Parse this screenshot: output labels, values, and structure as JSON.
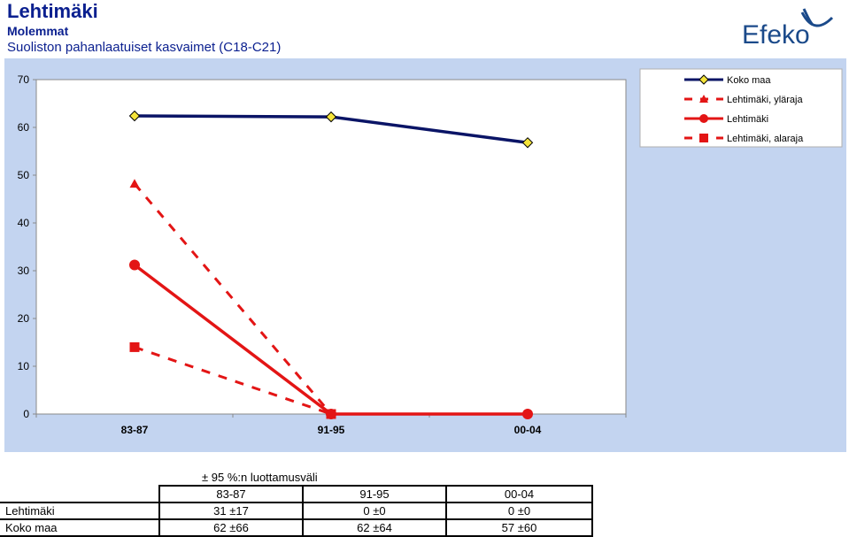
{
  "header": {
    "title": "Lehtimäki",
    "subtitle": "Molemmat",
    "chart_title": "Suoliston pahanlaatuiset kasvaimet (C18-C21)"
  },
  "logo": {
    "text": "Efeko"
  },
  "colors": {
    "plot_bg": "#ffffff",
    "outer_bg": "#c3d4f0",
    "navy": "#0a1466",
    "red": "#e31515",
    "marker_yellow": "#f5e43a"
  },
  "chart_data": {
    "type": "line",
    "categories": [
      "83-87",
      "91-95",
      "00-04"
    ],
    "ylim": [
      0,
      70
    ],
    "yticks": [
      0,
      10,
      20,
      30,
      40,
      50,
      60,
      70
    ],
    "grid": false,
    "legend_position": "top-right",
    "series": [
      {
        "name": "Koko maa",
        "values": [
          62.4,
          62.2,
          56.8
        ],
        "color": "#0a1466",
        "style": "solid",
        "marker": "diamond"
      },
      {
        "name": "Lehtimäki, yläraja",
        "values": [
          48.2,
          0,
          null
        ],
        "color": "#e31515",
        "style": "dashed",
        "marker": "triangle"
      },
      {
        "name": "Lehtimäki",
        "values": [
          31.2,
          0,
          0
        ],
        "color": "#e31515",
        "style": "solid",
        "marker": "circle"
      },
      {
        "name": "Lehtimäki, alaraja",
        "values": [
          14.0,
          0,
          null
        ],
        "color": "#e31515",
        "style": "dashed",
        "marker": "square"
      }
    ]
  },
  "table": {
    "title": "± 95 %:n luottamusväli",
    "columns": [
      "83-87",
      "91-95",
      "00-04"
    ],
    "rows": [
      {
        "label": "Lehtimäki",
        "cells": [
          "31 ±17",
          "0 ±0",
          "0 ±0"
        ]
      },
      {
        "label": "Koko maa",
        "cells": [
          "62 ±66",
          "62 ±64",
          "57 ±60"
        ]
      }
    ]
  }
}
